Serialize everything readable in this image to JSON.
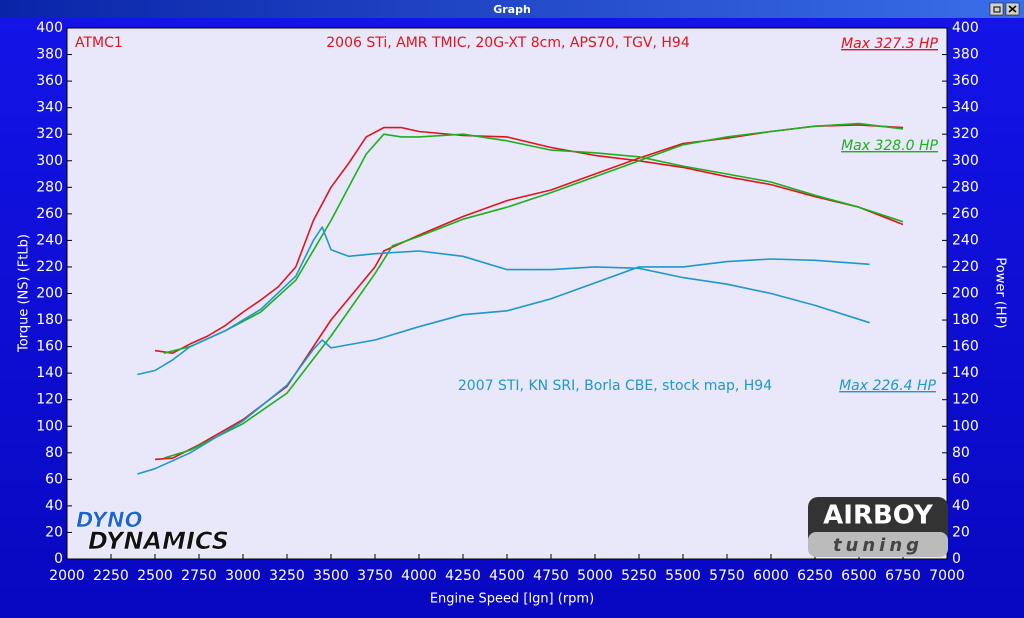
{
  "window_title": "Graph",
  "logos": {
    "dyno_top": "DYNO",
    "dyno_bottom": "DYNAMICS",
    "airboy": "AIRBOY",
    "tuning": "tuning"
  },
  "chart_data": {
    "type": "line",
    "xlabel": "Engine Speed [lgn] (rpm)",
    "ylabel": "Torque (NS) (FtLb)",
    "y2label": "Power (HP)",
    "xlim": [
      2000,
      7000
    ],
    "xticks": [
      2000,
      2250,
      2500,
      2750,
      3000,
      3250,
      3500,
      3750,
      4000,
      4250,
      4500,
      4750,
      5000,
      5250,
      5500,
      5750,
      6000,
      6250,
      6500,
      6750,
      7000
    ],
    "ylim": [
      0,
      400
    ],
    "yticks": [
      0,
      20,
      40,
      60,
      80,
      100,
      120,
      140,
      160,
      180,
      200,
      220,
      240,
      260,
      280,
      300,
      320,
      340,
      360,
      380,
      400
    ],
    "y2lim": [
      0,
      400
    ],
    "y2ticks": [
      0,
      20,
      40,
      60,
      80,
      100,
      120,
      140,
      160,
      180,
      200,
      220,
      240,
      260,
      280,
      300,
      320,
      340,
      360,
      380,
      400
    ],
    "grid": false,
    "annotations": [
      {
        "text": "ATMC1",
        "color": "#e0141e"
      },
      {
        "text": "2006 STi, AMR TMIC, 20G-XT 8cm, APS70, TGV, H94",
        "color": "#e0141e"
      },
      {
        "text": "Max 327.3 HP",
        "color": "#e0141e"
      },
      {
        "text": "Max 328.0 HP",
        "color": "#1fae1f"
      },
      {
        "text": "2007 STI, KN SRI, Borla CBE, stock map, H94",
        "color": "#1f98c8"
      },
      {
        "text": "Max 226.4 HP",
        "color": "#1f98c8"
      }
    ],
    "series": [
      {
        "color": "#e0141e",
        "x": [
          2500,
          2600,
          2700,
          2800,
          2900,
          3000,
          3100,
          3200,
          3300,
          3400,
          3500,
          3600,
          3700,
          3800,
          3900,
          4000,
          4250,
          4500,
          4750,
          5000,
          5250,
          5500,
          5750,
          6000,
          6250,
          6500,
          6750
        ],
        "values": [
          157,
          155,
          162,
          168,
          176,
          186,
          195,
          205,
          220,
          255,
          280,
          298,
          318,
          325,
          325,
          322,
          319,
          318,
          310,
          304,
          300,
          295,
          288,
          282,
          273,
          265,
          252
        ]
      },
      {
        "color": "#e0141e",
        "axis": "y2",
        "x": [
          2500,
          2600,
          2750,
          3000,
          3250,
          3400,
          3500,
          3750,
          3800,
          4000,
          4250,
          4500,
          4750,
          5000,
          5250,
          5500,
          5750,
          6000,
          6250,
          6500,
          6750
        ],
        "values": [
          75,
          76,
          86,
          105,
          130,
          160,
          180,
          220,
          232,
          244,
          258,
          270,
          278,
          290,
          302,
          313,
          317,
          322,
          326,
          327,
          325
        ]
      },
      {
        "color": "#1fae1f",
        "x": [
          2550,
          2700,
          2900,
          3100,
          3300,
          3500,
          3600,
          3700,
          3800,
          3900,
          4000,
          4250,
          4500,
          4750,
          5000,
          5250,
          5500,
          5750,
          6000,
          6250,
          6500,
          6750
        ],
        "values": [
          155,
          160,
          172,
          186,
          210,
          255,
          280,
          305,
          320,
          318,
          318,
          320,
          315,
          308,
          306,
          303,
          296,
          290,
          284,
          274,
          265,
          254
        ]
      },
      {
        "color": "#1fae1f",
        "axis": "y2",
        "x": [
          2550,
          2700,
          3000,
          3250,
          3500,
          3750,
          3850,
          4000,
          4250,
          4500,
          4750,
          5000,
          5250,
          5500,
          5750,
          6000,
          6250,
          6500,
          6750
        ],
        "values": [
          76,
          82,
          102,
          125,
          168,
          215,
          236,
          243,
          256,
          265,
          276,
          288,
          300,
          312,
          318,
          322,
          326,
          328,
          324
        ]
      },
      {
        "color": "#1f98c8",
        "x": [
          2400,
          2500,
          2600,
          2700,
          2900,
          3100,
          3300,
          3400,
          3450,
          3500,
          3600,
          3750,
          4000,
          4250,
          4500,
          4750,
          5000,
          5250,
          5500,
          5750,
          6000,
          6250,
          6560
        ],
        "values": [
          139,
          142,
          150,
          160,
          172,
          188,
          213,
          240,
          250,
          233,
          228,
          230,
          232,
          228,
          218,
          218,
          220,
          219,
          212,
          207,
          200,
          191,
          178
        ]
      },
      {
        "color": "#1f98c8",
        "axis": "y2",
        "x": [
          2400,
          2500,
          2700,
          3000,
          3250,
          3400,
          3450,
          3500,
          3750,
          4000,
          4250,
          4500,
          4750,
          5000,
          5250,
          5500,
          5750,
          6000,
          6250,
          6560
        ],
        "values": [
          64,
          68,
          80,
          104,
          131,
          158,
          165,
          159,
          165,
          175,
          184,
          187,
          196,
          208,
          220,
          220,
          224,
          226,
          225,
          222
        ]
      }
    ]
  }
}
